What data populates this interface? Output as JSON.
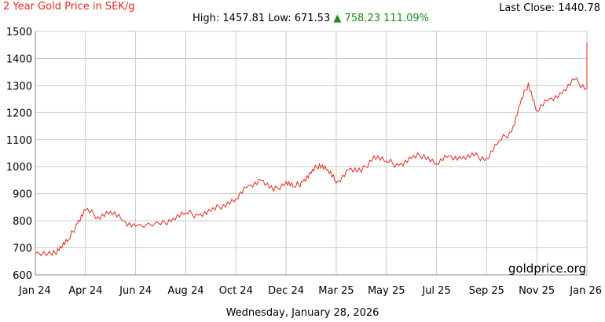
{
  "header": {
    "title": "2 Year Gold Price in SEK/g",
    "last_close_label": "Last Close:",
    "last_close_value": "1440.78",
    "high_label": "High:",
    "high_value": "1457.81",
    "low_label": "Low:",
    "low_value": "671.53",
    "change_arrow": "▲",
    "change_value": "758.23",
    "change_percent": "111.09%"
  },
  "watermark": "goldprice.org",
  "footer_date": "Wednesday, January 28, 2026",
  "colors": {
    "series": "#e8271c",
    "grid": "#c8c8c8",
    "change_up": "#1a8a1a"
  },
  "chart_data": {
    "type": "line",
    "title": "2 Year Gold Price in SEK/g",
    "xlabel": "",
    "ylabel": "",
    "x_ticks": [
      "Jan 24",
      "Apr 24",
      "Jun 24",
      "Aug 24",
      "Oct 24",
      "Dec 24",
      "Mar 25",
      "May 25",
      "Jul 25",
      "Sep 25",
      "Nov 25",
      "Jan 26"
    ],
    "ylim": [
      600,
      1500
    ],
    "y_ticks": [
      600,
      700,
      800,
      900,
      1000,
      1100,
      1200,
      1300,
      1400,
      1500
    ],
    "grid": true,
    "series": [
      {
        "points": [
          [
            "Jan 24",
            680
          ],
          [
            "Feb 24",
            672
          ],
          [
            "Feb 24",
            705
          ],
          [
            "Mar 24",
            730
          ],
          [
            "Mar 24",
            790
          ],
          [
            "Apr 24",
            840
          ],
          [
            "Apr 24",
            815
          ],
          [
            "May 24",
            835
          ],
          [
            "May 24",
            800
          ],
          [
            "Jun 24",
            780
          ],
          [
            "Jul 24",
            785
          ],
          [
            "Jul 24",
            810
          ],
          [
            "Aug 24",
            830
          ],
          [
            "Aug 24",
            820
          ],
          [
            "Sep 24",
            835
          ],
          [
            "Sep 24",
            860
          ],
          [
            "Oct 24",
            880
          ],
          [
            "Oct 24",
            930
          ],
          [
            "Nov 24",
            950
          ],
          [
            "Nov 24",
            910
          ],
          [
            "Dec 24",
            945
          ],
          [
            "Dec 24",
            925
          ],
          [
            "Jan 25",
            945
          ],
          [
            "Jan 25",
            975
          ],
          [
            "Feb 25",
            1010
          ],
          [
            "Feb 25",
            990
          ],
          [
            "Mar 25",
            940
          ],
          [
            "Mar 25",
            990
          ],
          [
            "Apr 25",
            980
          ],
          [
            "Apr 25",
            1040
          ],
          [
            "May 25",
            1020
          ],
          [
            "May 25",
            1005
          ],
          [
            "Jun 25",
            1030
          ],
          [
            "Jun 25",
            1045
          ],
          [
            "Jul 25",
            1010
          ],
          [
            "Jul 25",
            1040
          ],
          [
            "Aug 25",
            1030
          ],
          [
            "Aug 25",
            1040
          ],
          [
            "Sep 25",
            1030
          ],
          [
            "Sep 25",
            1095
          ],
          [
            "Oct 25",
            1130
          ],
          [
            "Oct 25",
            1230
          ],
          [
            "Oct 25",
            1310
          ],
          [
            "Nov 25",
            1205
          ],
          [
            "Nov 25",
            1250
          ],
          [
            "Dec 25",
            1270
          ],
          [
            "Dec 25",
            1320
          ],
          [
            "Jan 26",
            1290
          ],
          [
            "Jan 26",
            1400
          ],
          [
            "Jan 26",
            1457.81
          ],
          [
            "Jan 26",
            1440.78
          ]
        ]
      }
    ]
  }
}
